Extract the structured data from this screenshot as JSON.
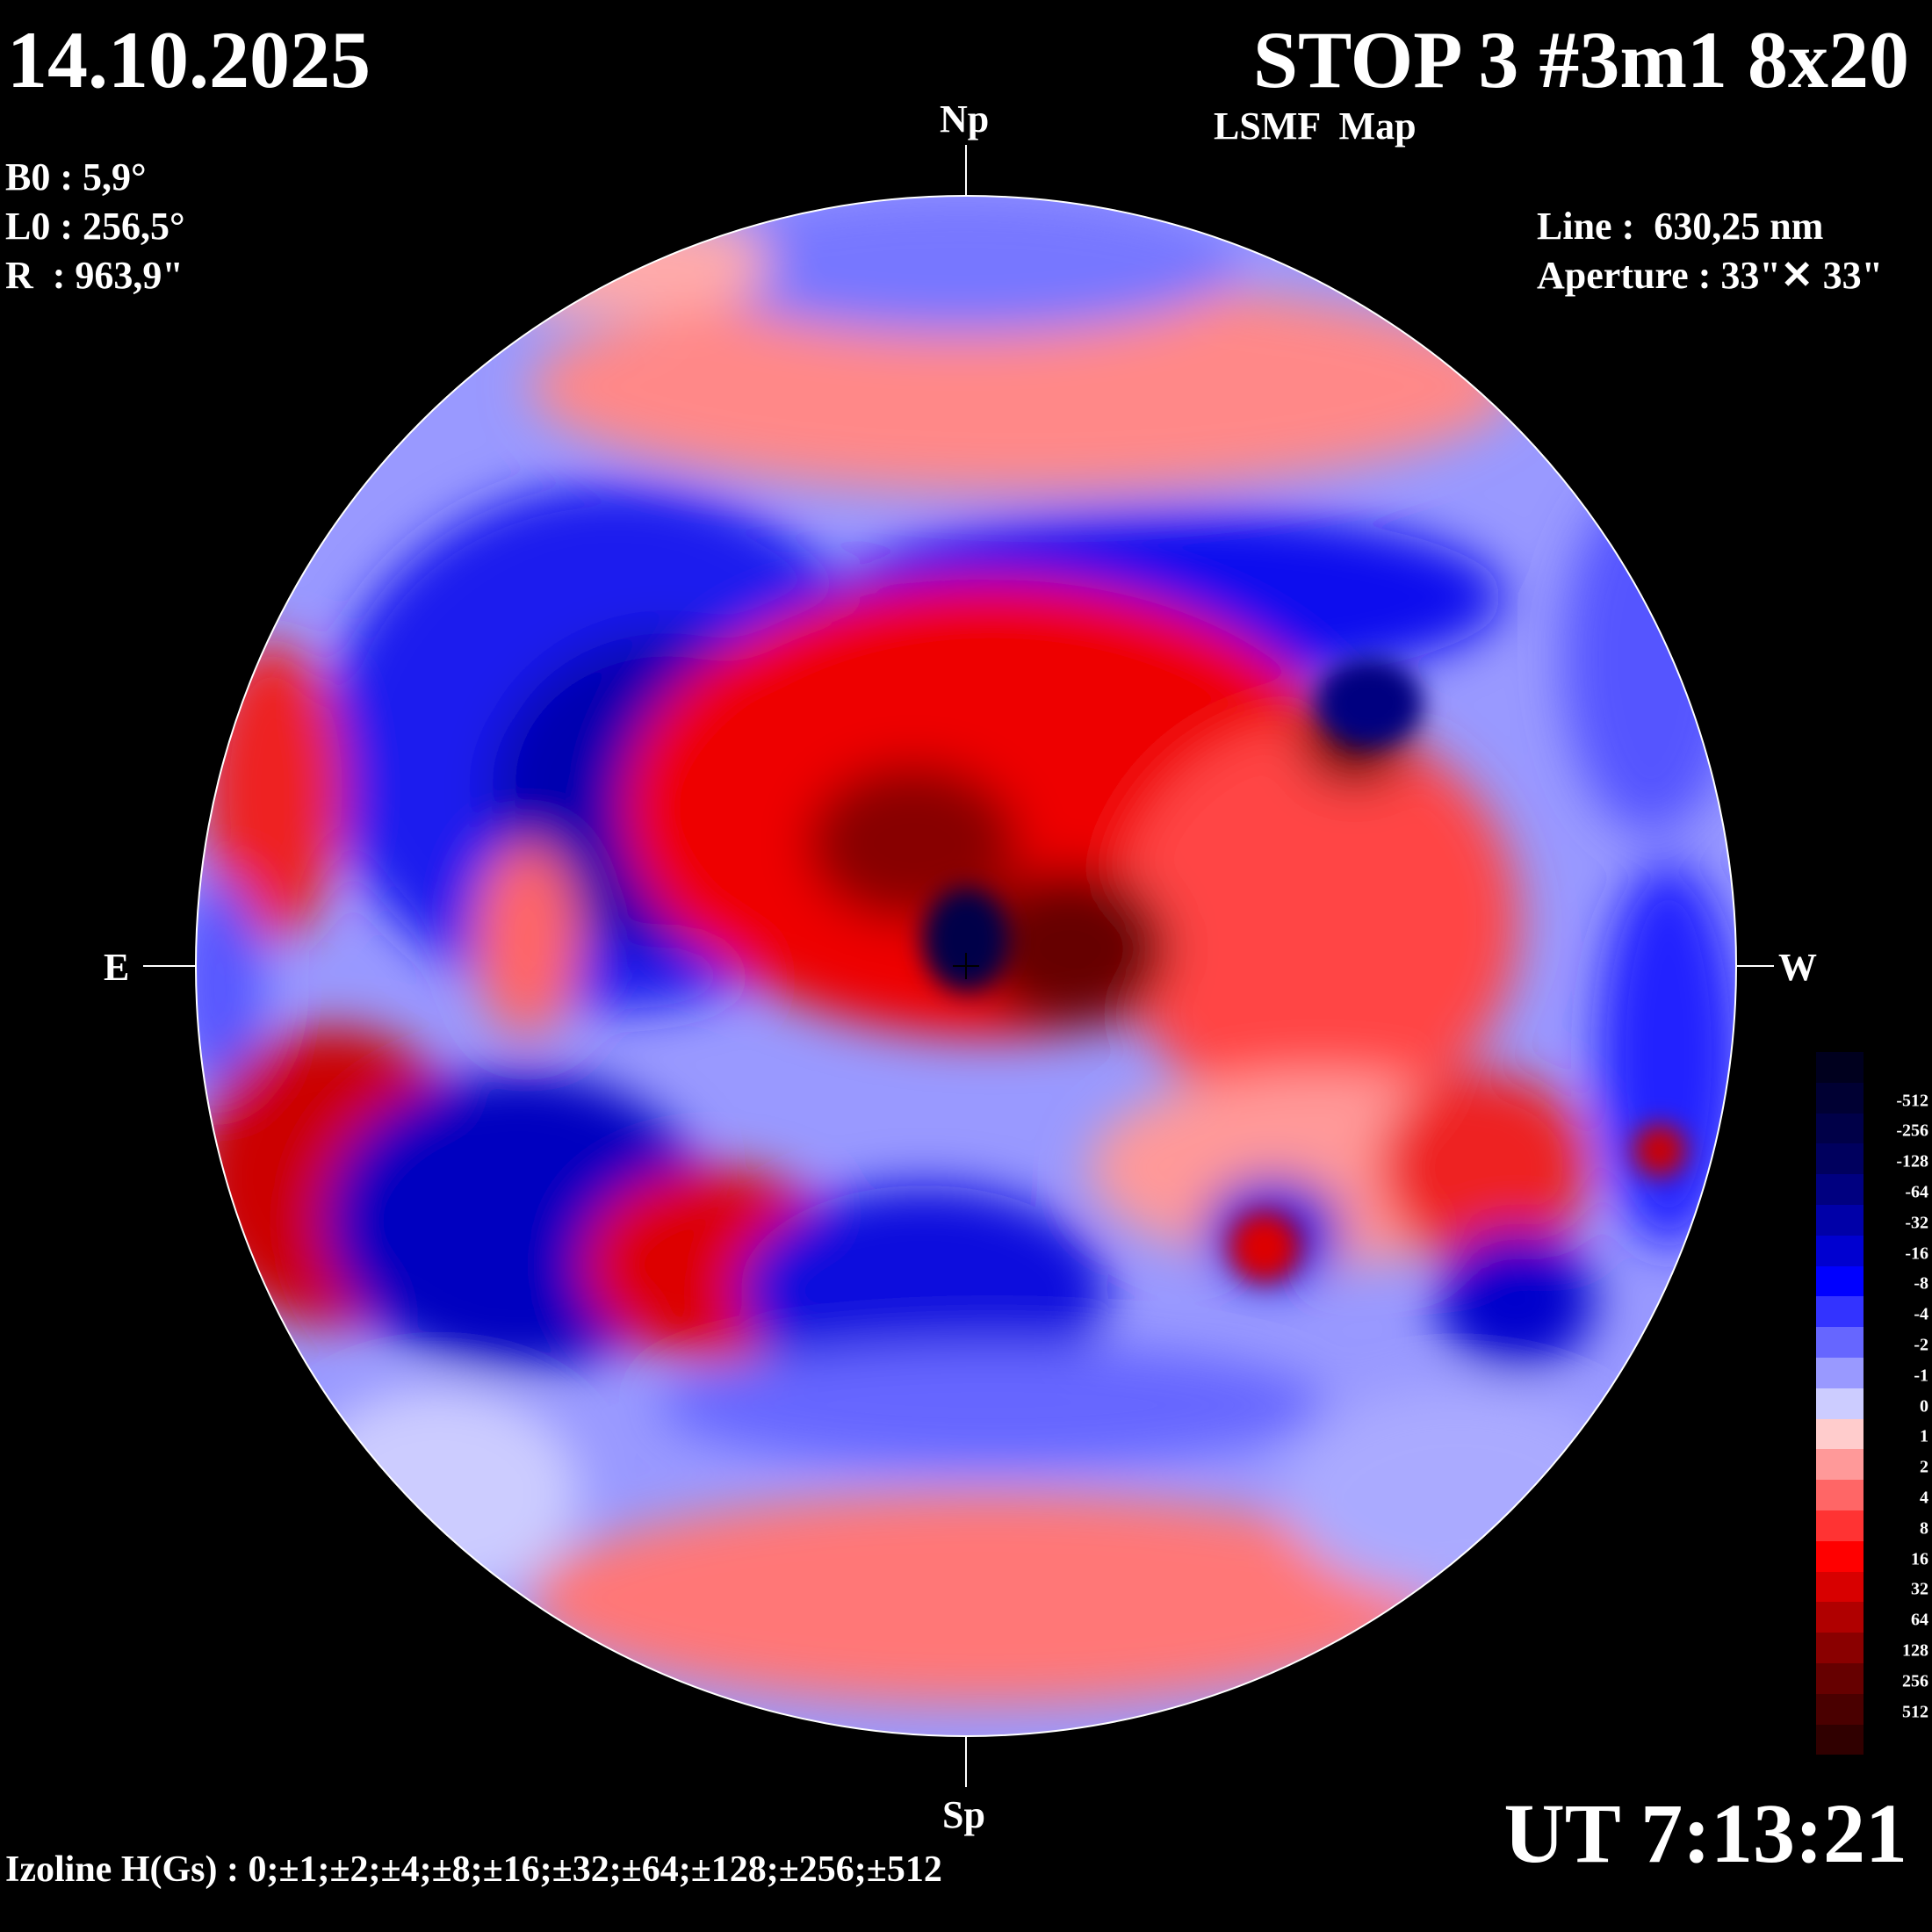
{
  "header": {
    "date": "14.10.2025",
    "title": "STOP 3 #3m1 8x20",
    "subtitle": "LSMF  Map"
  },
  "params_left": [
    "B0 : 5,9°",
    "L0 : 256,5°",
    "R  : 963,9\""
  ],
  "params_right": [
    "Line :  630,25 nm",
    "Aperture : 33\"✕ 33\""
  ],
  "orientation": {
    "north": "Np",
    "south": "Sp",
    "east": "E",
    "west": "W"
  },
  "footer": {
    "izoline": "Izoline H(Gs) : 0;±1;±2;±4;±8;±16;±32;±64;±128;±256;±512",
    "time": "UT 7:13:21"
  },
  "legend": {
    "labels": [
      "-512",
      "-256",
      "-128",
      "-64",
      "-32",
      "-16",
      "-8",
      "-4",
      "-2",
      "-1",
      "0",
      "1",
      "2",
      "4",
      "8",
      "16",
      "32",
      "64",
      "128",
      "256",
      "512"
    ],
    "colors": [
      "#00001e",
      "#000033",
      "#000048",
      "#00005e",
      "#000080",
      "#0000a8",
      "#0000d0",
      "#0000ff",
      "#3333ff",
      "#6666ff",
      "#9999ff",
      "#ccccff",
      "#ffcccc",
      "#ff9999",
      "#ff6666",
      "#ff3333",
      "#ff0000",
      "#d80000",
      "#b00000",
      "#8a0000",
      "#660000",
      "#4a0000",
      "#300000"
    ]
  }
}
